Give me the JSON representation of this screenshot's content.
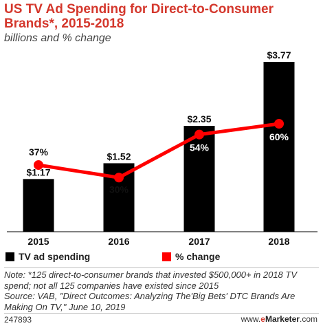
{
  "header": {
    "title": "US TV Ad Spending for Direct-to-Consumer Brands*, 2015-2018",
    "subtitle": "billions and % change"
  },
  "chart_data": {
    "type": "bar",
    "categories": [
      "2015",
      "2016",
      "2017",
      "2018"
    ],
    "series": [
      {
        "name": "TV ad spending",
        "type": "bar",
        "values": [
          1.17,
          1.52,
          2.35,
          3.77
        ],
        "labels": [
          "$1.17",
          "$1.52",
          "$2.35",
          "$3.77"
        ],
        "color": "#000000",
        "ylim": [
          0,
          3.77
        ]
      },
      {
        "name": "% change",
        "type": "line",
        "values": [
          37,
          30,
          54,
          60
        ],
        "labels": [
          "37%",
          "30%",
          "54%",
          "60%"
        ],
        "color": "#ff0000",
        "ylim": [
          0,
          100
        ]
      }
    ],
    "grid": false,
    "legend": "bottom"
  },
  "legend": {
    "items": [
      "TV ad spending",
      "% change"
    ]
  },
  "notes": {
    "line1": "Note: *125 direct-to-consumer brands that invested $500,000+ in 2018 TV",
    "line2": "spend; not all 125 companies have existed since 2015",
    "line3": "Source: VAB, \"Direct Outcomes: Analyzing The'Big Bets' DTC Brands Are",
    "line4": "Making On TV,\" June 10, 2019"
  },
  "footer": {
    "id": "247893",
    "brand_prefix": "www.",
    "brand_e": "e",
    "brand_name": "Marketer",
    "brand_suffix": ".com"
  }
}
